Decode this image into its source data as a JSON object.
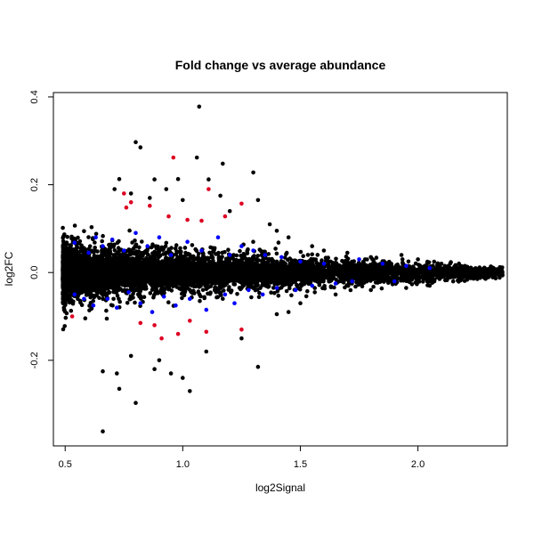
{
  "chart_data": {
    "type": "scatter",
    "title": "Fold change vs average abundance",
    "xlabel": "log2Signal",
    "ylabel": "log2FC",
    "xlim": [
      0.45,
      2.38
    ],
    "ylim": [
      -0.395,
      0.41
    ],
    "xticks": [
      {
        "value": 0.5,
        "label": "0.5"
      },
      {
        "value": 1.0,
        "label": "1.0"
      },
      {
        "value": 1.5,
        "label": "1.5"
      },
      {
        "value": 2.0,
        "label": "2.0"
      }
    ],
    "yticks": [
      {
        "value": -0.2,
        "label": "-0.2"
      },
      {
        "value": 0.0,
        "label": "0.0"
      },
      {
        "value": 0.2,
        "label": "0.2"
      },
      {
        "value": 0.4,
        "label": "0.4"
      }
    ],
    "grid": false,
    "colors": {
      "black": "#000000",
      "blue": "#0000ff",
      "red": "#dd0022"
    },
    "series": [
      {
        "color": "black",
        "description": "all features (dense cloud, trumpet-shaped, narrowing toward high signal)",
        "points": [
          [
            1.07,
            0.378
          ],
          [
            0.8,
            0.297
          ],
          [
            0.82,
            0.285
          ],
          [
            1.17,
            0.248
          ],
          [
            1.06,
            0.262
          ],
          [
            1.3,
            0.228
          ],
          [
            0.73,
            0.213
          ],
          [
            0.88,
            0.212
          ],
          [
            0.98,
            0.213
          ],
          [
            1.11,
            0.212
          ],
          [
            0.71,
            0.19
          ],
          [
            1.16,
            0.175
          ],
          [
            0.93,
            0.19
          ],
          [
            1.32,
            0.165
          ],
          [
            1.2,
            0.14
          ],
          [
            1.0,
            0.165
          ],
          [
            0.86,
            0.17
          ],
          [
            0.78,
            0.18
          ],
          [
            1.4,
            0.095
          ],
          [
            1.45,
            0.08
          ],
          [
            1.37,
            0.11
          ],
          [
            1.55,
            0.06
          ],
          [
            1.6,
            0.05
          ],
          [
            1.7,
            0.045
          ],
          [
            1.8,
            0.035
          ],
          [
            1.93,
            0.04
          ],
          [
            2.0,
            0.03
          ],
          [
            2.1,
            0.02
          ],
          [
            2.2,
            0.015
          ],
          [
            2.3,
            0.008
          ],
          [
            0.66,
            -0.362
          ],
          [
            0.8,
            -0.297
          ],
          [
            0.73,
            -0.265
          ],
          [
            0.72,
            -0.23
          ],
          [
            0.66,
            -0.225
          ],
          [
            0.88,
            -0.22
          ],
          [
            1.03,
            -0.27
          ],
          [
            1.0,
            -0.24
          ],
          [
            0.95,
            -0.23
          ],
          [
            1.32,
            -0.215
          ],
          [
            0.9,
            -0.2
          ],
          [
            0.78,
            -0.19
          ],
          [
            1.1,
            -0.18
          ],
          [
            1.25,
            -0.15
          ],
          [
            1.4,
            -0.095
          ],
          [
            1.45,
            -0.09
          ],
          [
            1.5,
            -0.07
          ],
          [
            1.65,
            -0.05
          ],
          [
            1.8,
            -0.04
          ],
          [
            1.95,
            -0.035
          ],
          [
            2.05,
            -0.03
          ],
          [
            2.15,
            -0.02
          ],
          [
            2.25,
            -0.01
          ]
        ]
      },
      {
        "color": "blue",
        "description": "highlighted features",
        "points": [
          [
            0.54,
            0.068
          ],
          [
            0.6,
            0.045
          ],
          [
            0.63,
            0.08
          ],
          [
            0.66,
            0.06
          ],
          [
            0.7,
            0.075
          ],
          [
            0.75,
            0.05
          ],
          [
            0.8,
            0.09
          ],
          [
            0.85,
            0.06
          ],
          [
            0.9,
            0.08
          ],
          [
            0.95,
            0.04
          ],
          [
            1.02,
            0.07
          ],
          [
            1.08,
            0.05
          ],
          [
            1.15,
            0.08
          ],
          [
            1.2,
            0.04
          ],
          [
            1.25,
            0.06
          ],
          [
            1.3,
            0.05
          ],
          [
            1.35,
            0.04
          ],
          [
            1.42,
            0.035
          ],
          [
            1.5,
            0.025
          ],
          [
            1.6,
            0.02
          ],
          [
            1.75,
            0.03
          ],
          [
            1.85,
            0.02
          ],
          [
            1.95,
            0.015
          ],
          [
            2.05,
            0.01
          ],
          [
            0.54,
            -0.05
          ],
          [
            0.58,
            -0.06
          ],
          [
            0.62,
            -0.075
          ],
          [
            0.68,
            -0.06
          ],
          [
            0.72,
            -0.08
          ],
          [
            0.77,
            -0.045
          ],
          [
            0.82,
            -0.07
          ],
          [
            0.87,
            -0.09
          ],
          [
            0.92,
            -0.055
          ],
          [
            0.97,
            -0.075
          ],
          [
            1.03,
            -0.06
          ],
          [
            1.1,
            -0.085
          ],
          [
            1.18,
            -0.05
          ],
          [
            1.22,
            -0.07
          ],
          [
            1.28,
            -0.04
          ],
          [
            1.34,
            -0.05
          ],
          [
            1.4,
            -0.035
          ],
          [
            1.48,
            -0.04
          ],
          [
            1.55,
            -0.03
          ],
          [
            1.65,
            -0.025
          ],
          [
            1.72,
            -0.02
          ],
          [
            1.9,
            -0.02
          ]
        ]
      },
      {
        "color": "red",
        "description": "significant features",
        "points": [
          [
            0.96,
            0.262
          ],
          [
            0.75,
            0.18
          ],
          [
            0.78,
            0.16
          ],
          [
            1.11,
            0.19
          ],
          [
            1.25,
            0.157
          ],
          [
            0.86,
            0.152
          ],
          [
            0.94,
            0.128
          ],
          [
            1.02,
            0.12
          ],
          [
            1.08,
            0.118
          ],
          [
            0.76,
            0.148
          ],
          [
            1.18,
            0.128
          ],
          [
            0.53,
            -0.1
          ],
          [
            0.82,
            -0.115
          ],
          [
            0.91,
            -0.15
          ],
          [
            0.98,
            -0.14
          ],
          [
            1.03,
            -0.11
          ],
          [
            1.1,
            -0.135
          ],
          [
            1.25,
            -0.13
          ],
          [
            0.88,
            -0.12
          ]
        ]
      }
    ],
    "cloud": {
      "x_start": 0.49,
      "x_end": 2.36,
      "spread_at_low": 0.068,
      "spread_at_high": 0.01
    }
  }
}
